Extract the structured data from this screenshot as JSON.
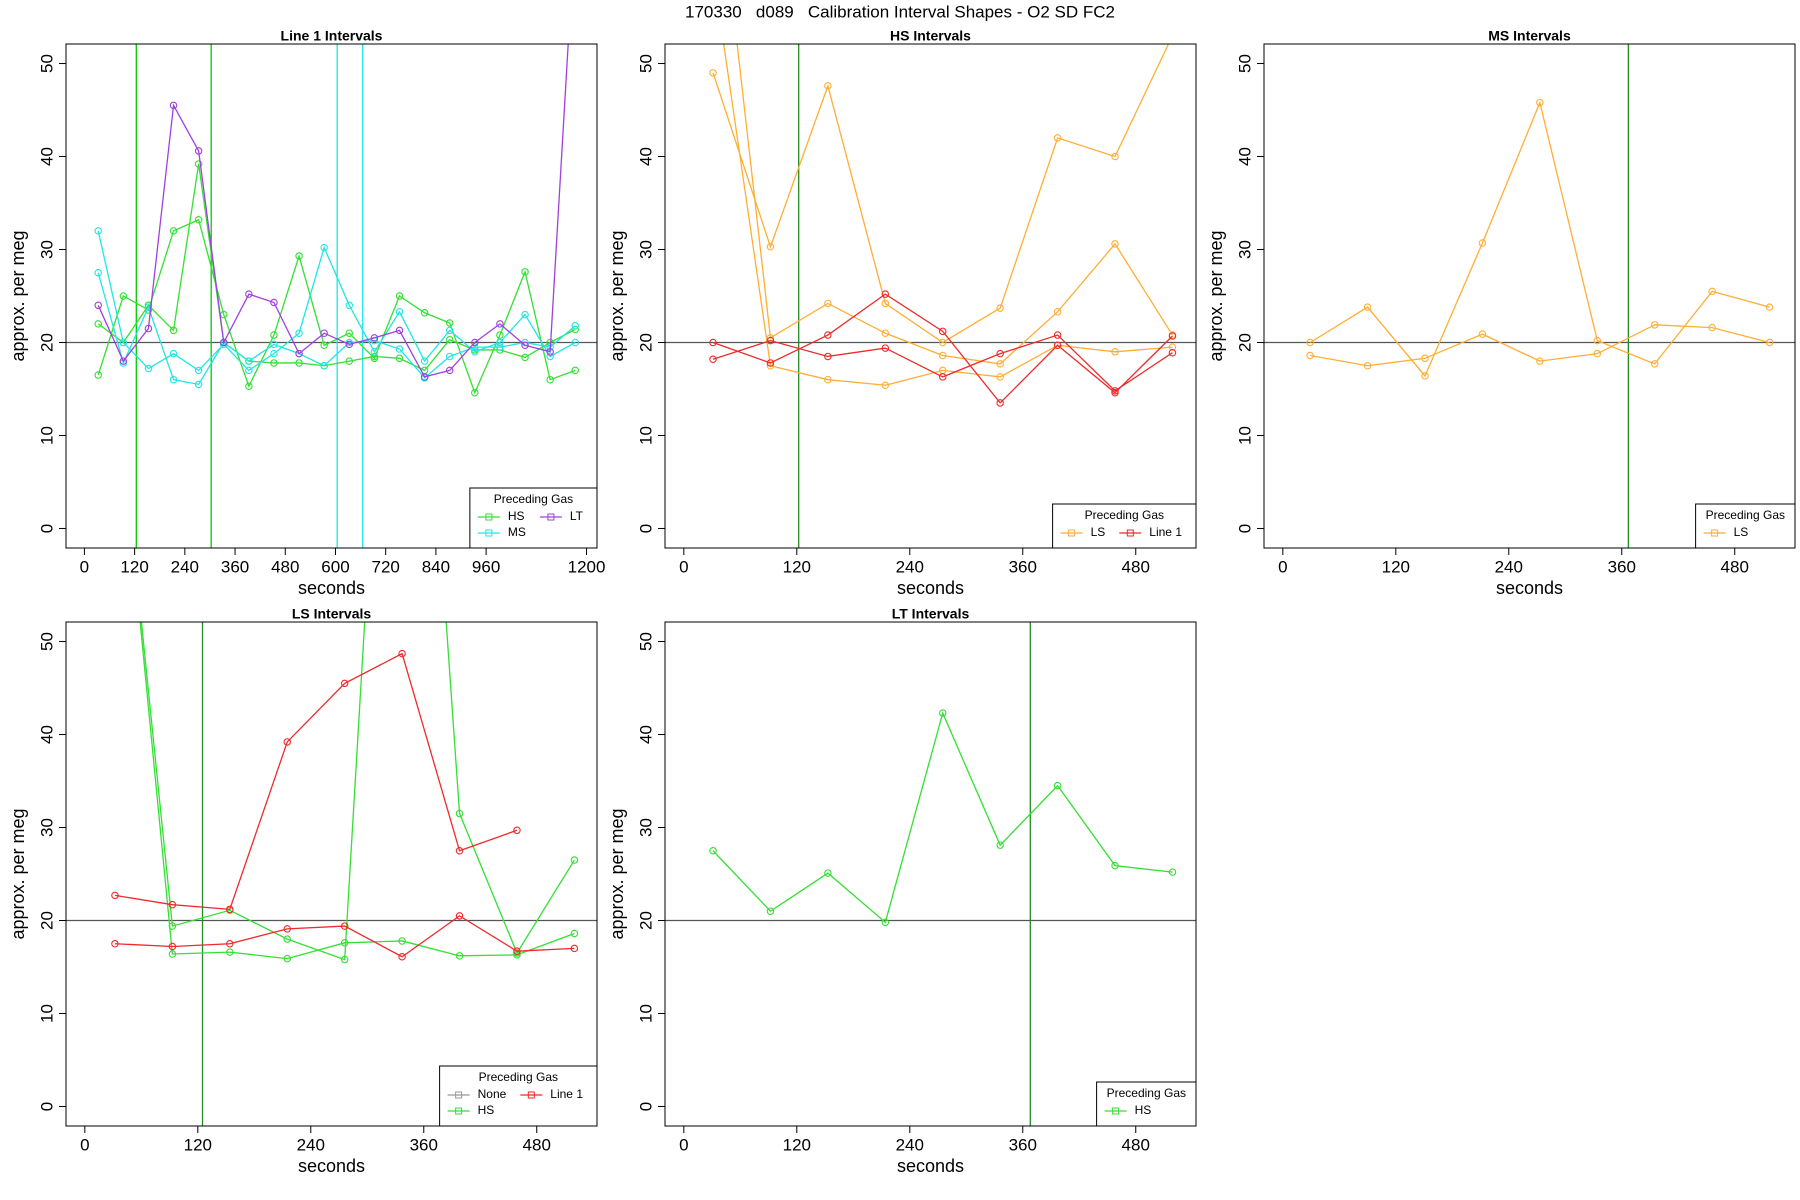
{
  "title": "170330   d089   Calibration Interval Shapes - O2 SD FC2",
  "chart_data": [
    {
      "type": "line",
      "title": "Line 1 Intervals",
      "xlabel": "seconds",
      "ylabel": "approx. per meg",
      "xlim": [
        -44,
        1225
      ],
      "ylim": [
        -2.1,
        52.1
      ],
      "xticks": [
        0,
        120,
        240,
        360,
        480,
        600,
        720,
        840,
        960,
        1200
      ],
      "yticks": [
        0,
        10,
        20,
        30,
        40,
        50
      ],
      "hline": 20,
      "hline_color": "#555555",
      "vlines": [
        {
          "x": 124,
          "color": "#00cc00"
        },
        {
          "x": 303,
          "color": "#00cc00"
        },
        {
          "x": 604,
          "color": "#22e5e5"
        },
        {
          "x": 665,
          "color": "#22e5e5"
        }
      ],
      "legend_title": "Preceding Gas",
      "legend_position": "bottomright",
      "legend_ncol": 2,
      "series": [
        {
          "name": "HS",
          "color": "#33e033",
          "x": [
            33,
            93,
            153,
            213,
            273,
            333,
            393,
            453,
            513,
            573,
            633,
            693,
            753,
            813,
            873,
            933,
            993,
            1053,
            1113,
            1173
          ],
          "lines": [
            [
              16.5,
              25,
              23.5,
              32,
              33.2,
              23,
              15.3,
              20.8,
              29.3,
              19.7,
              21,
              18.3,
              25,
              23.2,
              22.1,
              14.6,
              20.8,
              27.6,
              16,
              17
            ],
            [
              22,
              20,
              24,
              21.3,
              39.2,
              20,
              18,
              17.8,
              17.8,
              17.5,
              18,
              18.5,
              18.3,
              17,
              20.3,
              19.2,
              19.2,
              18.4,
              20,
              21.4
            ]
          ]
        },
        {
          "name": "MS",
          "color": "#22e5e5",
          "x": [
            33,
            93,
            153,
            213,
            273,
            333,
            393,
            453,
            513,
            573,
            633,
            693,
            753,
            813,
            873,
            933,
            993,
            1053,
            1113,
            1173
          ],
          "lines": [
            [
              32,
              20,
              17.2,
              18.8,
              17,
              19.8,
              17,
              18.8,
              21,
              30.2,
              24,
              19,
              23.3,
              18,
              21.3,
              19,
              20,
              23,
              18.5,
              20
            ],
            [
              27.5,
              17.8,
              23.8,
              16,
              15.5,
              20,
              18,
              19.8,
              18.8,
              17.5,
              20,
              20.2,
              19.3,
              16.2,
              18.5,
              19.5,
              19.5,
              20,
              19.5,
              21.8
            ]
          ]
        },
        {
          "name": "LT",
          "color": "#a040e0",
          "x": [
            33,
            93,
            153,
            213,
            273,
            333,
            393,
            453,
            513,
            573,
            633,
            693,
            753,
            813,
            873,
            933,
            993,
            1053,
            1113,
            1173
          ],
          "lines": [
            [
              24,
              18,
              21.5,
              45.5,
              40.6,
              20,
              25.2,
              24.3,
              18.8,
              21,
              19.8,
              20.5,
              21.3,
              16.3,
              17,
              20,
              22,
              19.7,
              19,
              65
            ]
          ]
        }
      ]
    },
    {
      "type": "line",
      "title": "HS Intervals",
      "xlabel": "seconds",
      "ylabel": "approx. per meg",
      "xlim": [
        -20,
        544
      ],
      "ylim": [
        -2.1,
        52.1
      ],
      "xticks": [
        0,
        120,
        240,
        360,
        480
      ],
      "yticks": [
        0,
        10,
        20,
        30,
        40,
        50
      ],
      "hline": 20,
      "hline_color": "#555555",
      "vlines": [
        {
          "x": 122,
          "color": "#228b22"
        }
      ],
      "legend_title": "Preceding Gas",
      "legend_position": "bottomright",
      "legend_ncol": 2,
      "series": [
        {
          "name": "LS",
          "color": "#ffae33",
          "x": [
            31,
            92,
            153,
            214,
            275,
            336,
            397,
            458,
            519
          ],
          "lines": [
            [
              49,
              30.3,
              47.6,
              24.2,
              20,
              23.7,
              42,
              40,
              53
            ],
            [
              75,
              20.5,
              24.2,
              21,
              18.6,
              17.7,
              23.3,
              30.6,
              20.8
            ],
            [
              60,
              17.5,
              16,
              15.4,
              17,
              16.3,
              19.7,
              19,
              19.5
            ]
          ]
        },
        {
          "name": "Line 1",
          "color": "#ee2a2a",
          "x": [
            31,
            92,
            153,
            214,
            275,
            336,
            397,
            458,
            519
          ],
          "lines": [
            [
              20,
              17.8,
              20.8,
              25.2,
              21.2,
              13.5,
              19.7,
              14.6,
              20.7
            ],
            [
              18.2,
              20.2,
              18.5,
              19.4,
              16.3,
              18.8,
              20.8,
              14.8,
              18.9
            ]
          ]
        }
      ]
    },
    {
      "type": "line",
      "title": "MS Intervals",
      "xlabel": "seconds",
      "ylabel": "approx. per meg",
      "xlim": [
        -20,
        544
      ],
      "ylim": [
        -2.1,
        52.1
      ],
      "xticks": [
        0,
        120,
        240,
        360,
        480
      ],
      "yticks": [
        0,
        10,
        20,
        30,
        40,
        50
      ],
      "hline": 20,
      "hline_color": "#555555",
      "vlines": [
        {
          "x": 367,
          "color": "#228b22"
        }
      ],
      "legend_title": "Preceding Gas",
      "legend_position": "bottomright",
      "legend_ncol": 1,
      "series": [
        {
          "name": "LS",
          "color": "#ffae33",
          "x": [
            29,
            90,
            151,
            212,
            273,
            334,
            395,
            456,
            517
          ],
          "lines": [
            [
              20,
              23.8,
              16.4,
              30.7,
              45.8,
              20.2,
              17.7,
              25.5,
              23.8
            ],
            [
              18.6,
              17.5,
              18.3,
              20.9,
              18,
              18.8,
              21.9,
              21.6,
              20
            ]
          ]
        }
      ]
    },
    {
      "type": "line",
      "title": "LS Intervals",
      "xlabel": "seconds",
      "ylabel": "approx. per meg",
      "xlim": [
        -20,
        544
      ],
      "ylim": [
        -2.1,
        52.1
      ],
      "xticks": [
        0,
        120,
        240,
        360,
        480
      ],
      "yticks": [
        0,
        10,
        20,
        30,
        40,
        50
      ],
      "hline": 20,
      "hline_color": "#555555",
      "vlines": [
        {
          "x": 125,
          "color": "#228b22"
        }
      ],
      "legend_title": "Preceding Gas",
      "legend_position": "bottomright",
      "legend_ncol": 2,
      "series": [
        {
          "name": "None",
          "color": "#999999",
          "x": [
            32,
            93,
            154,
            215,
            276,
            337,
            398,
            459,
            520
          ],
          "lines": []
        },
        {
          "name": "HS",
          "color": "#33e033",
          "x": [
            32,
            93,
            154,
            215,
            276,
            337,
            398,
            459,
            520
          ],
          "lines": [
            [
              80,
              19.4,
              21.1,
              18,
              15.8,
              120,
              31.5,
              16.5,
              26.5
            ],
            [
              80,
              16.4,
              16.6,
              15.9,
              17.6,
              17.8,
              16.2,
              16.3,
              18.6
            ]
          ]
        },
        {
          "name": "Line 1",
          "color": "#ee2a2a",
          "x": [
            32,
            93,
            154,
            215,
            276,
            337,
            398,
            459,
            520
          ],
          "lines": [
            [
              22.7,
              21.7,
              21.2,
              39.2,
              45.5,
              48.7,
              27.5,
              29.7,
              null
            ],
            [
              17.5,
              17.2,
              17.5,
              19.1,
              19.4,
              16.1,
              20.5,
              16.7,
              17
            ]
          ]
        }
      ]
    },
    {
      "type": "line",
      "title": "LT Intervals",
      "xlabel": "seconds",
      "ylabel": "approx. per meg",
      "xlim": [
        -20,
        544
      ],
      "ylim": [
        -2.1,
        52.1
      ],
      "xticks": [
        0,
        120,
        240,
        360,
        480
      ],
      "yticks": [
        0,
        10,
        20,
        30,
        40,
        50
      ],
      "hline": 20,
      "hline_color": "#555555",
      "vlines": [
        {
          "x": 368,
          "color": "#228b22"
        }
      ],
      "legend_title": "Preceding Gas",
      "legend_position": "bottomright",
      "legend_ncol": 1,
      "series": [
        {
          "name": "HS",
          "color": "#33e033",
          "x": [
            31,
            92,
            153,
            214,
            275,
            336,
            397,
            458,
            519
          ],
          "lines": [
            [
              27.5,
              21,
              25.1,
              19.8,
              42.3,
              28.1,
              34.5,
              25.9,
              25.2
            ]
          ]
        }
      ]
    }
  ]
}
